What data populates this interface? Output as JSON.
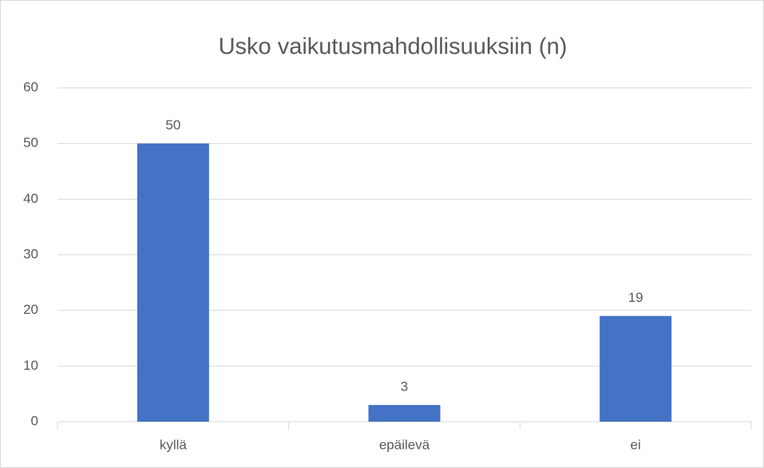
{
  "chart_data": {
    "type": "bar",
    "title": "Usko vaikutusmahdollisuuksiin (n)",
    "categories": [
      "kyllä",
      "epäilevä",
      "ei"
    ],
    "values": [
      50,
      3,
      19
    ],
    "color": "#4472c4",
    "ylim": [
      0,
      60
    ],
    "yticks": [
      0,
      10,
      20,
      30,
      40,
      50,
      60
    ],
    "grid": true
  }
}
